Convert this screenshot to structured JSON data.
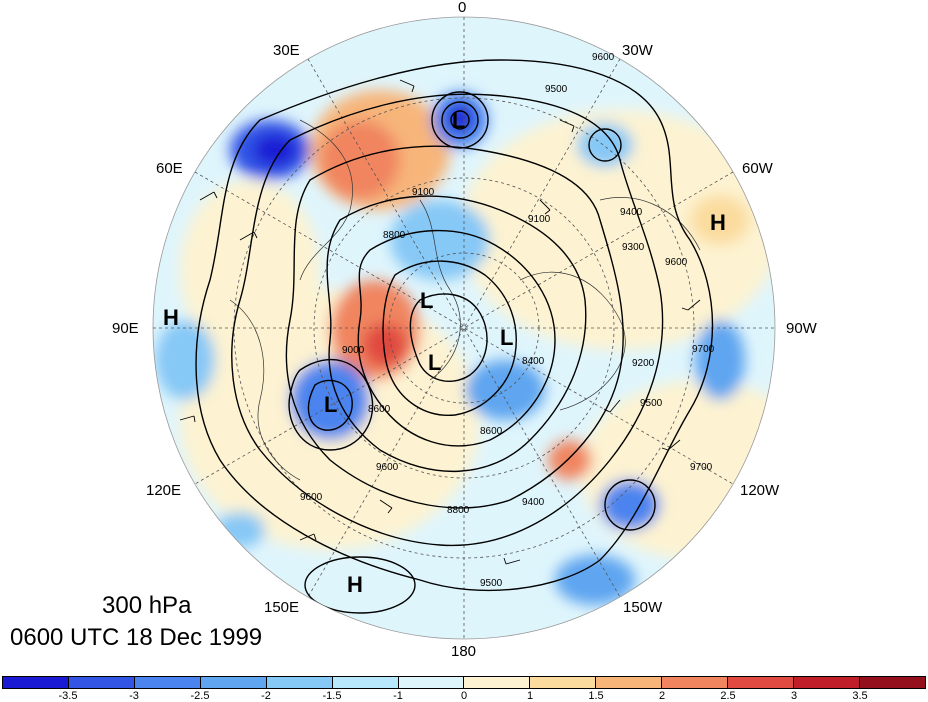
{
  "title": {
    "level": "300 hPa",
    "time": "0600 UTC 18 Dec 1999"
  },
  "longitude_labels": {
    "0": "0",
    "30W": "30W",
    "60W": "60W",
    "90W": "90W",
    "120W": "120W",
    "150W": "150W",
    "180": "180",
    "150E": "150E",
    "120E": "120E",
    "90E": "90E",
    "60E": "60E",
    "30E": "30E"
  },
  "pressure_centers": [
    "L",
    "L",
    "L",
    "L",
    "L",
    "H",
    "H",
    "H"
  ],
  "contour_labels": [
    "9600",
    "9500",
    "9100",
    "9100",
    "8800",
    "9300",
    "9600",
    "9200",
    "9400",
    "9000",
    "8600",
    "8400",
    "8600",
    "9500",
    "9700",
    "8800",
    "9400",
    "9600",
    "9500",
    "9600",
    "9700"
  ],
  "colorbar": {
    "ticks": [
      "-3.5",
      "-3",
      "-2.5",
      "-2",
      "-1.5",
      "-1",
      "0",
      "1",
      "1.5",
      "2",
      "2.5",
      "3",
      "3.5"
    ],
    "colors": [
      "#1a1ad4",
      "#3355e6",
      "#4b84ee",
      "#5fa5f0",
      "#86c8f6",
      "#b7e8fb",
      "#dff5fc",
      "#fdf3d2",
      "#fbdc9e",
      "#f7b57a",
      "#f08560",
      "#e04a40",
      "#c01f2a",
      "#94101c"
    ]
  }
}
